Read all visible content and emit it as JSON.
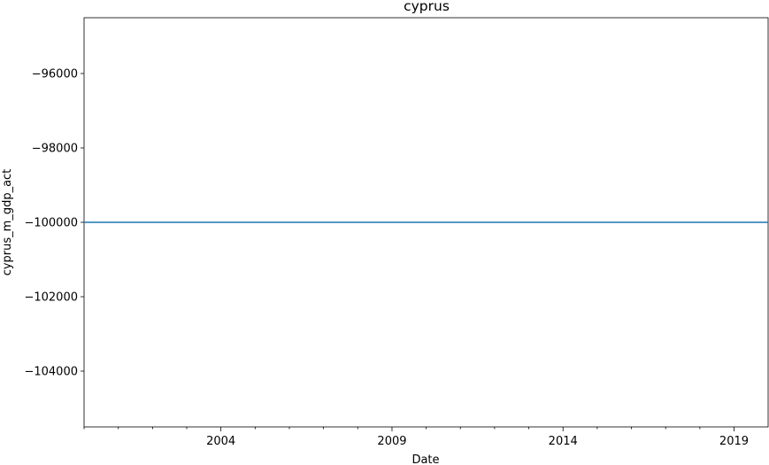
{
  "chart_data": {
    "type": "line",
    "title": "cyprus",
    "xlabel": "Date",
    "ylabel": "cyprus_m_gdp_act",
    "x_range": [
      "2000-01-01",
      "2019-12-31"
    ],
    "ylim": [
      -105500,
      -94500
    ],
    "x_ticks": [
      "2004",
      "2009",
      "2014",
      "2019"
    ],
    "y_ticks": [
      -96000,
      -98000,
      -100000,
      -102000,
      -104000
    ],
    "y_tick_labels": [
      "−96000",
      "−98000",
      "−100000",
      "−102000",
      "−104000"
    ],
    "grid": false,
    "series": [
      {
        "color": "#1f77b4",
        "x": [
          "2000-01-01",
          "2019-12-31"
        ],
        "values": [
          -100000,
          -100000
        ]
      }
    ]
  }
}
